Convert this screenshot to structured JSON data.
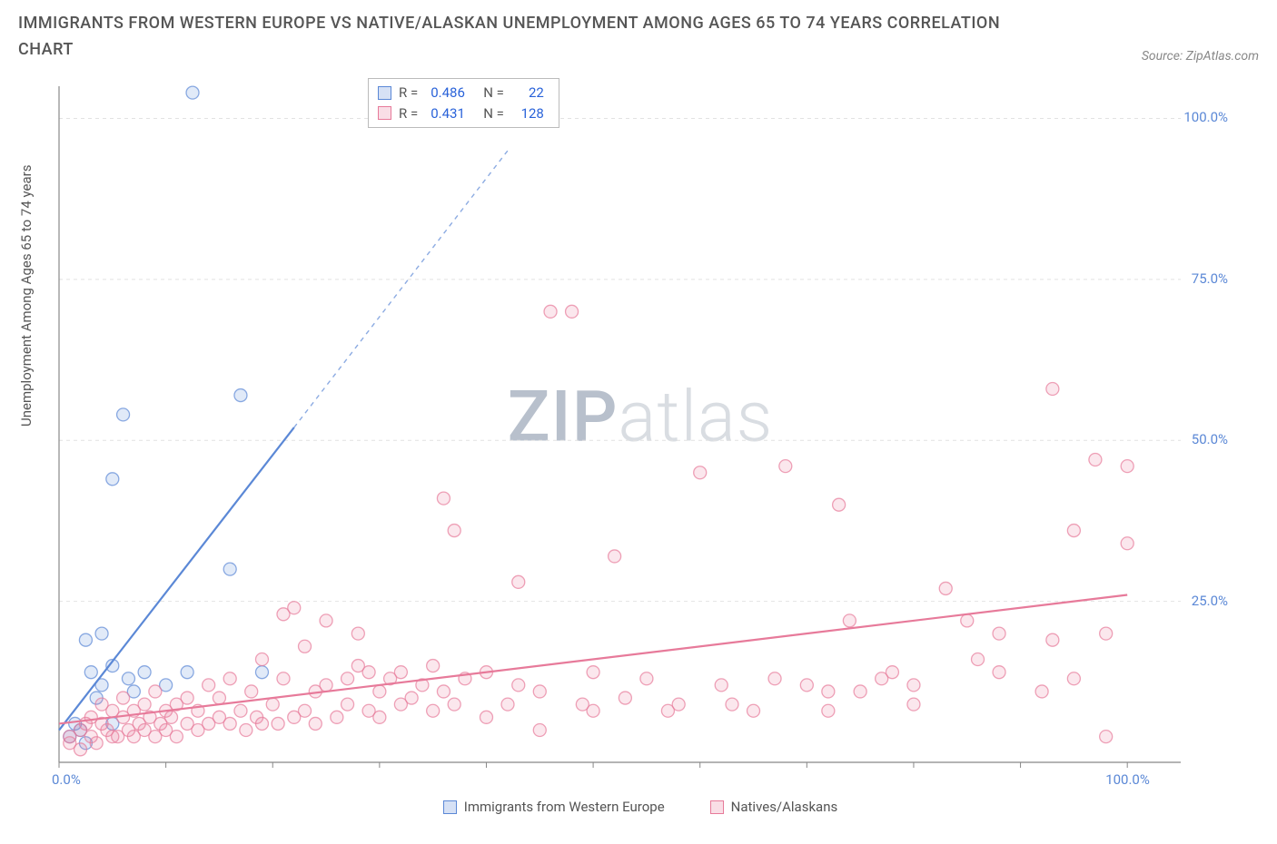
{
  "title": "IMMIGRANTS FROM WESTERN EUROPE VS NATIVE/ALASKAN UNEMPLOYMENT AMONG AGES 65 TO 74 YEARS CORRELATION CHART",
  "source_label": "Source: ZipAtlas.com",
  "y_axis_label": "Unemployment Among Ages 65 to 74 years",
  "watermark_a": "ZIP",
  "watermark_b": "atlas",
  "chart": {
    "type": "scatter",
    "xlim": [
      0,
      105
    ],
    "ylim": [
      0,
      105
    ],
    "background_color": "#ffffff",
    "grid_color": "#e2e2e2",
    "grid_dash": "4,4",
    "axis_line_color": "#888888",
    "tick_color": "#888888",
    "y_ticks": [
      0,
      25,
      50,
      75,
      100
    ],
    "y_tick_labels": [
      "0.0%",
      "25.0%",
      "50.0%",
      "75.0%",
      "100.0%"
    ],
    "x_ticks_minor_step": 10,
    "x_tick_labels": {
      "0": "0.0%",
      "100": "100.0%"
    },
    "axis_label_color": "#5b88d6",
    "axis_label_fontsize": 15,
    "point_radius": 7,
    "point_stroke_width": 1.3,
    "point_fill_opacity": 0.18,
    "trend_line_width": 2.2,
    "trend_dash": "5,5"
  },
  "series": [
    {
      "id": "immigrants",
      "label": "Immigrants from Western Europe",
      "stroke_color": "#5b88d6",
      "fill_color": "#5b88d6",
      "R": "0.486",
      "N": "22",
      "trend": {
        "x1": 0,
        "y1": 5,
        "x2": 22,
        "y2": 52,
        "dash_x1": 22,
        "dash_y1": 52,
        "dash_x2": 42,
        "dash_y2": 95
      },
      "points": [
        [
          1,
          4
        ],
        [
          1.5,
          6
        ],
        [
          2,
          5
        ],
        [
          2.5,
          3
        ],
        [
          2.5,
          19
        ],
        [
          3,
          14
        ],
        [
          3.5,
          10
        ],
        [
          4,
          20
        ],
        [
          4,
          12
        ],
        [
          5,
          15
        ],
        [
          5,
          44
        ],
        [
          6,
          54
        ],
        [
          6.5,
          13
        ],
        [
          7,
          11
        ],
        [
          8,
          14
        ],
        [
          10,
          12
        ],
        [
          12,
          14
        ],
        [
          12.5,
          104
        ],
        [
          16,
          30
        ],
        [
          17,
          57
        ],
        [
          19,
          14
        ],
        [
          5,
          6
        ]
      ]
    },
    {
      "id": "natives",
      "label": "Natives/Alaskans",
      "stroke_color": "#e77a9a",
      "fill_color": "#e77a9a",
      "R": "0.431",
      "N": "128",
      "trend": {
        "x1": 0,
        "y1": 6,
        "x2": 100,
        "y2": 26,
        "dash_x1": 100,
        "dash_y1": 26,
        "dash_x2": 100,
        "dash_y2": 26
      },
      "points": [
        [
          1,
          3
        ],
        [
          1,
          4
        ],
        [
          2,
          2
        ],
        [
          2,
          5
        ],
        [
          2.5,
          6
        ],
        [
          3,
          4
        ],
        [
          3,
          7
        ],
        [
          3.5,
          3
        ],
        [
          4,
          6
        ],
        [
          4,
          9
        ],
        [
          4.5,
          5
        ],
        [
          5,
          4
        ],
        [
          5,
          8
        ],
        [
          5.5,
          4
        ],
        [
          6,
          7
        ],
        [
          6,
          10
        ],
        [
          6.5,
          5
        ],
        [
          7,
          4
        ],
        [
          7,
          8
        ],
        [
          7.5,
          6
        ],
        [
          8,
          5
        ],
        [
          8,
          9
        ],
        [
          8.5,
          7
        ],
        [
          9,
          4
        ],
        [
          9,
          11
        ],
        [
          9.5,
          6
        ],
        [
          10,
          8
        ],
        [
          10,
          5
        ],
        [
          10.5,
          7
        ],
        [
          11,
          4
        ],
        [
          11,
          9
        ],
        [
          12,
          6
        ],
        [
          12,
          10
        ],
        [
          13,
          5
        ],
        [
          13,
          8
        ],
        [
          14,
          6
        ],
        [
          14,
          12
        ],
        [
          15,
          7
        ],
        [
          15,
          10
        ],
        [
          16,
          6
        ],
        [
          16,
          13
        ],
        [
          17,
          8
        ],
        [
          17.5,
          5
        ],
        [
          18,
          11
        ],
        [
          18.5,
          7
        ],
        [
          19,
          6
        ],
        [
          19,
          16
        ],
        [
          20,
          9
        ],
        [
          20.5,
          6
        ],
        [
          21,
          13
        ],
        [
          21,
          23
        ],
        [
          22,
          7
        ],
        [
          22,
          24
        ],
        [
          23,
          8
        ],
        [
          23,
          18
        ],
        [
          24,
          11
        ],
        [
          24,
          6
        ],
        [
          25,
          12
        ],
        [
          25,
          22
        ],
        [
          26,
          7
        ],
        [
          27,
          9
        ],
        [
          27,
          13
        ],
        [
          28,
          15
        ],
        [
          28,
          20
        ],
        [
          29,
          8
        ],
        [
          29,
          14
        ],
        [
          30,
          11
        ],
        [
          30,
          7
        ],
        [
          31,
          13
        ],
        [
          32,
          9
        ],
        [
          32,
          14
        ],
        [
          33,
          10
        ],
        [
          34,
          12
        ],
        [
          35,
          8
        ],
        [
          35,
          15
        ],
        [
          36,
          11
        ],
        [
          36,
          41
        ],
        [
          37,
          9
        ],
        [
          37,
          36
        ],
        [
          38,
          13
        ],
        [
          40,
          7
        ],
        [
          40,
          14
        ],
        [
          42,
          9
        ],
        [
          43,
          12
        ],
        [
          43,
          28
        ],
        [
          45,
          5
        ],
        [
          45,
          11
        ],
        [
          46,
          70
        ],
        [
          48,
          70
        ],
        [
          49,
          9
        ],
        [
          50,
          8
        ],
        [
          50,
          14
        ],
        [
          52,
          32
        ],
        [
          53,
          10
        ],
        [
          55,
          13
        ],
        [
          57,
          8
        ],
        [
          58,
          9
        ],
        [
          60,
          45
        ],
        [
          62,
          12
        ],
        [
          63,
          9
        ],
        [
          65,
          8
        ],
        [
          67,
          13
        ],
        [
          68,
          46
        ],
        [
          70,
          12
        ],
        [
          72,
          8
        ],
        [
          72,
          11
        ],
        [
          73,
          40
        ],
        [
          74,
          22
        ],
        [
          75,
          11
        ],
        [
          77,
          13
        ],
        [
          78,
          14
        ],
        [
          80,
          9
        ],
        [
          80,
          12
        ],
        [
          83,
          27
        ],
        [
          85,
          22
        ],
        [
          86,
          16
        ],
        [
          88,
          14
        ],
        [
          88,
          20
        ],
        [
          92,
          11
        ],
        [
          93,
          19
        ],
        [
          93,
          58
        ],
        [
          95,
          36
        ],
        [
          95,
          13
        ],
        [
          97,
          47
        ],
        [
          98,
          20
        ],
        [
          98,
          4
        ],
        [
          100,
          34
        ],
        [
          100,
          46
        ]
      ]
    }
  ],
  "stats_box": {
    "R_label": "R =",
    "N_label": "N ="
  }
}
